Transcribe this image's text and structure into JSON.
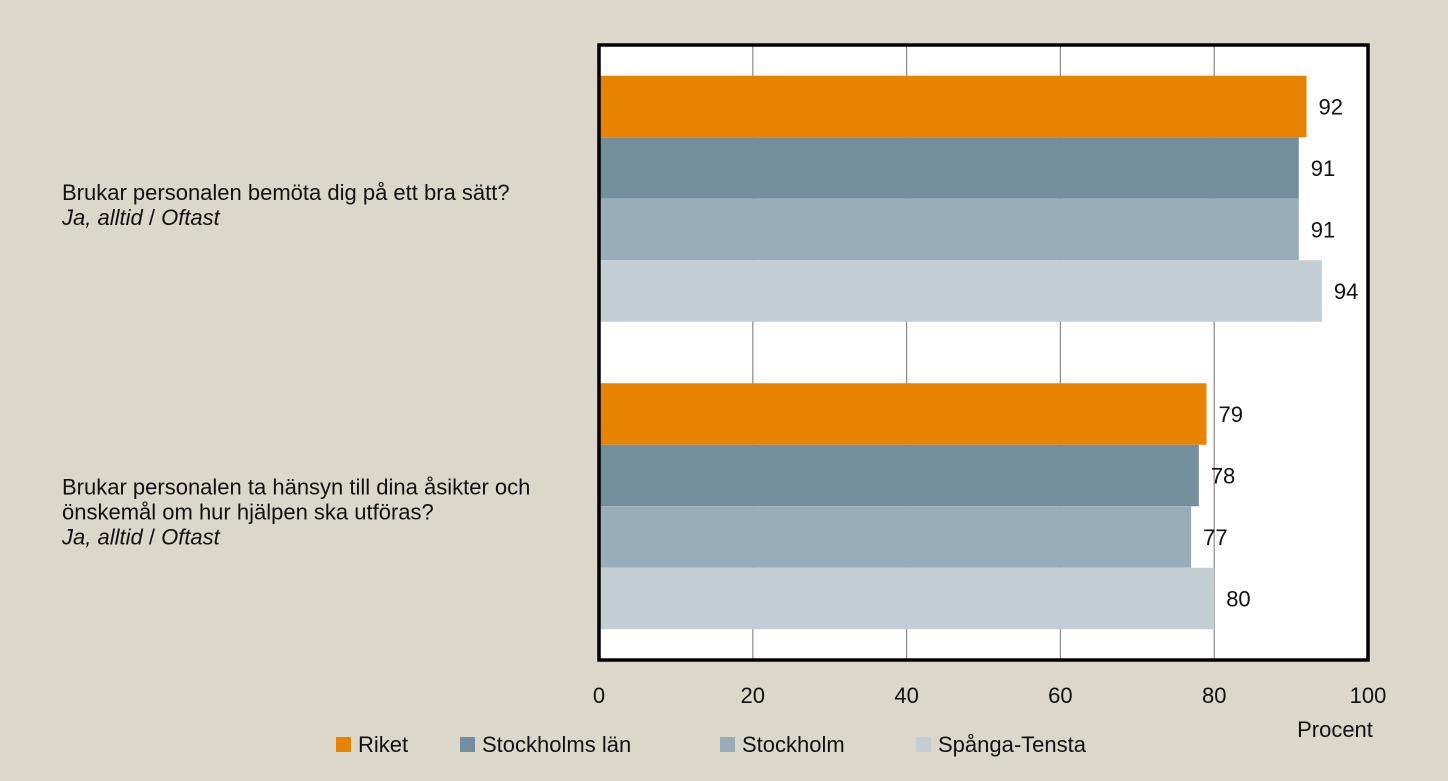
{
  "chart_data": {
    "type": "bar",
    "orientation": "horizontal",
    "categories": [
      "Brukar personalen bemöta dig på ett bra sätt?",
      "Brukar personalen ta hänsyn till dina åsikter och önskemål om hur hjälpen ska utföras?"
    ],
    "category_notes": [
      [
        "Ja, alltid",
        "/",
        "Oftast"
      ],
      [
        "Ja, alltid",
        "/",
        "Oftast"
      ]
    ],
    "series": [
      {
        "name": "Riket",
        "color": "#e88300",
        "values": [
          92,
          79
        ]
      },
      {
        "name": "Stockholms län",
        "color": "#738e9c",
        "values": [
          91,
          78
        ]
      },
      {
        "name": "Stockholm",
        "color": "#98adb9",
        "values": [
          91,
          77
        ]
      },
      {
        "name": "Spånga-Tensta",
        "color": "#c3ced5",
        "values": [
          94,
          80
        ]
      }
    ],
    "xlabel": "Procent",
    "xlim": [
      0,
      100
    ],
    "xticks": [
      0,
      20,
      40,
      60,
      80,
      100
    ],
    "grid": true,
    "legend": "bottom"
  }
}
